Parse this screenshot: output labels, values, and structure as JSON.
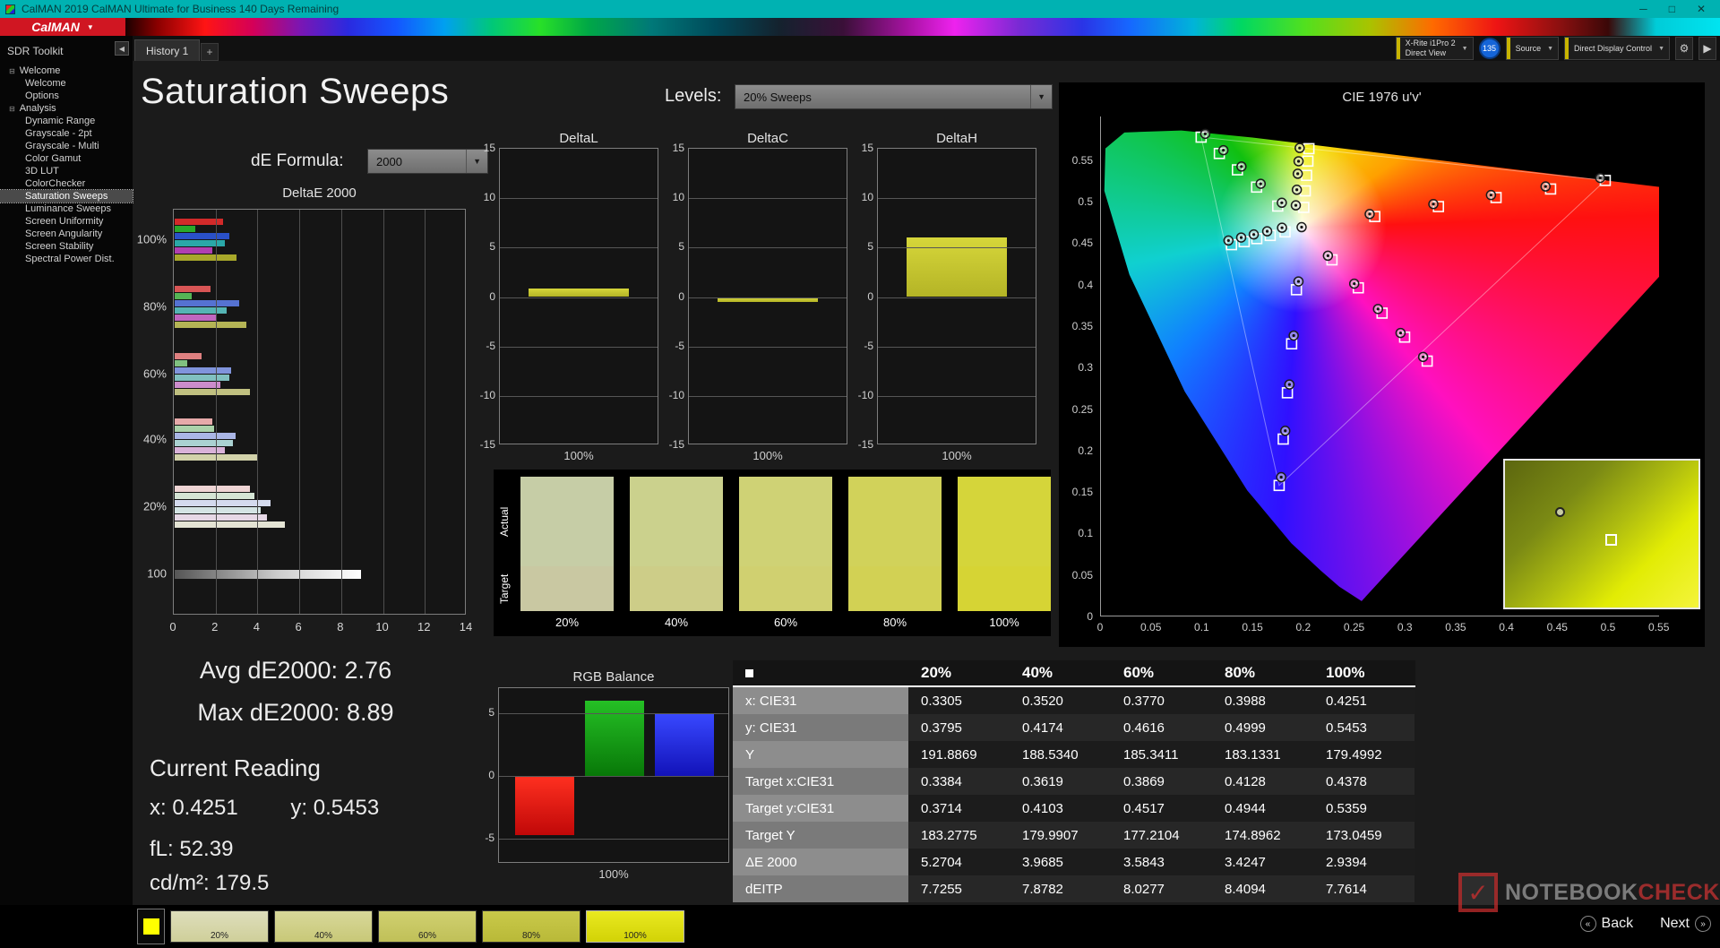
{
  "titlebar": {
    "title": "CalMAN 2019 CalMAN Ultimate for Business 140 Days Remaining",
    "minimize": "─",
    "maximize": "□",
    "close": "✕"
  },
  "brand": {
    "logo": "CalMAN",
    "arrow": "▼"
  },
  "tabs": {
    "history": "History 1",
    "add": "+",
    "collapse": "◀"
  },
  "ui": {
    "dropdown_arrow": "▼"
  },
  "topbar": {
    "meter_line1": "X-Rite i1Pro 2",
    "meter_line2": "Direct View",
    "badge": "135",
    "source": "Source",
    "display_control": "Direct Display Control",
    "gear": "⚙",
    "advance": "▶"
  },
  "sidebar": {
    "header": "SDR Toolkit",
    "groups": [
      {
        "label": "Welcome",
        "items": [
          "Welcome",
          "Options"
        ],
        "selected": ""
      },
      {
        "label": "Analysis",
        "items": [
          "Dynamic Range",
          "Grayscale - 2pt",
          "Grayscale - Multi",
          "Color Gamut",
          "3D LUT",
          "ColorChecker",
          "Saturation Sweeps",
          "Luminance Sweeps",
          "Screen Uniformity",
          "Screen Angularity",
          "Screen Stability",
          "Spectral Power Dist."
        ],
        "selected": "Saturation Sweeps"
      }
    ]
  },
  "page": {
    "title": "Saturation Sweeps",
    "levels_label": "Levels:",
    "levels_value": "20% Sweeps",
    "formula_label": "dE Formula:",
    "formula_value": "2000"
  },
  "chart_data": {
    "deltae": {
      "type": "bar",
      "title": "DeltaE 2000",
      "x_ticks": [
        0,
        2,
        4,
        6,
        8,
        10,
        12,
        14
      ],
      "x_max": 14,
      "groups": [
        {
          "label": "100%",
          "values": [
            2.3,
            1.0,
            2.6,
            2.4,
            1.8,
            2.94
          ],
          "colors": [
            "#d22a2a",
            "#2aa82a",
            "#2a50c8",
            "#2aa8a8",
            "#b040b0",
            "#a8a82a"
          ]
        },
        {
          "label": "80%",
          "values": [
            1.7,
            0.8,
            3.1,
            2.5,
            2.0,
            3.42
          ],
          "colors": [
            "#d85555",
            "#55b455",
            "#5572d2",
            "#55b4b4",
            "#c066c0",
            "#b4b455"
          ]
        },
        {
          "label": "60%",
          "values": [
            1.3,
            0.6,
            2.7,
            2.6,
            2.2,
            3.58
          ],
          "colors": [
            "#de8080",
            "#80c080",
            "#8094dc",
            "#80c0c0",
            "#cc8ccc",
            "#c0c080"
          ]
        },
        {
          "label": "40%",
          "values": [
            1.8,
            1.9,
            2.9,
            2.8,
            2.4,
            3.97
          ],
          "colors": [
            "#e6aaaa",
            "#aad2aa",
            "#aab6e6",
            "#aad2d2",
            "#d9b2d9",
            "#d2d2aa"
          ]
        },
        {
          "label": "20%",
          "values": [
            3.6,
            3.8,
            4.6,
            4.1,
            4.4,
            5.27
          ],
          "colors": [
            "#eed4d4",
            "#d4e4d4",
            "#d4daee",
            "#d4e4e4",
            "#e6d8e6",
            "#e4e4d4"
          ]
        },
        {
          "label": "100",
          "values": [
            8.89
          ],
          "colors": null
        }
      ]
    },
    "delta_axis": {
      "ticks": [
        15,
        10,
        5,
        0,
        -5,
        -10,
        -15
      ],
      "max": 15
    },
    "delta_charts": [
      {
        "title": "DeltaL",
        "value": 0.9,
        "x_label": "100%"
      },
      {
        "title": "DeltaC",
        "value": -0.5,
        "x_label": "100%"
      },
      {
        "title": "DeltaH",
        "value": 6.0,
        "x_label": "100%"
      }
    ],
    "rgb_balance": {
      "type": "bar",
      "title": "RGB Balance",
      "x_label": "100%",
      "ticks": [
        5,
        0,
        -5
      ],
      "max": 7,
      "bars": [
        {
          "name": "red",
          "value": -4.7,
          "color1": "#ff3020",
          "color2": "#c00808"
        },
        {
          "name": "green",
          "value": 6.0,
          "color1": "#25c025",
          "color2": "#087808"
        },
        {
          "name": "blue",
          "value": 4.9,
          "color1": "#3848ff",
          "color2": "#1212b8"
        }
      ]
    },
    "cie": {
      "type": "scatter",
      "title": "CIE 1976 u'v'",
      "x_tick_labels": [
        "0",
        "0.05",
        "0.1",
        "0.15",
        "0.2",
        "0.25",
        "0.3",
        "0.35",
        "0.4",
        "0.45",
        "0.5",
        "0.55"
      ],
      "y_tick_labels": [
        "0.55",
        "0.5",
        "0.45",
        "0.4",
        "0.35",
        "0.3",
        "0.25",
        "0.2",
        "0.15",
        "0.1",
        "0.05",
        "0"
      ],
      "triangle": [
        [
          0.4964,
          0.5255
        ],
        [
          0.0986,
          0.5777
        ],
        [
          0.1754,
          0.1579
        ]
      ],
      "targets": [
        [
          0.2695,
          0.482
        ],
        [
          0.3322,
          0.494
        ],
        [
          0.3889,
          0.5049
        ],
        [
          0.4426,
          0.5152
        ],
        [
          0.4964,
          0.5255
        ],
        [
          0.174,
          0.4946
        ],
        [
          0.1532,
          0.5175
        ],
        [
          0.1343,
          0.5383
        ],
        [
          0.1165,
          0.558
        ],
        [
          0.0986,
          0.5777
        ],
        [
          0.1924,
          0.3938
        ],
        [
          0.1877,
          0.3286
        ],
        [
          0.1835,
          0.2696
        ],
        [
          0.1794,
          0.2138
        ],
        [
          0.1754,
          0.1579
        ],
        [
          0.1812,
          0.4635
        ],
        [
          0.1666,
          0.4592
        ],
        [
          0.1534,
          0.4554
        ],
        [
          0.141,
          0.4517
        ],
        [
          0.1285,
          0.4481
        ],
        [
          0.2274,
          0.4298
        ],
        [
          0.2533,
          0.3961
        ],
        [
          0.2767,
          0.3656
        ],
        [
          0.2989,
          0.3367
        ],
        [
          0.3211,
          0.3078
        ],
        [
          0.1996,
          0.493
        ],
        [
          0.2011,
          0.5129
        ],
        [
          0.2024,
          0.5316
        ],
        [
          0.2037,
          0.5488
        ],
        [
          0.2047,
          0.5638
        ]
      ],
      "measured": [
        [
          0.2645,
          0.485
        ],
        [
          0.3272,
          0.497
        ],
        [
          0.3839,
          0.5079
        ],
        [
          0.4376,
          0.5182
        ],
        [
          0.4914,
          0.5285
        ],
        [
          0.178,
          0.4986
        ],
        [
          0.1572,
          0.5215
        ],
        [
          0.1383,
          0.5423
        ],
        [
          0.1205,
          0.562
        ],
        [
          0.1026,
          0.5817
        ],
        [
          0.1944,
          0.4038
        ],
        [
          0.1897,
          0.3386
        ],
        [
          0.1855,
          0.2796
        ],
        [
          0.1814,
          0.2238
        ],
        [
          0.1774,
          0.1679
        ],
        [
          0.1782,
          0.4685
        ],
        [
          0.1636,
          0.4642
        ],
        [
          0.1504,
          0.4604
        ],
        [
          0.138,
          0.4567
        ],
        [
          0.1255,
          0.4531
        ],
        [
          0.2234,
          0.4348
        ],
        [
          0.2493,
          0.4011
        ],
        [
          0.2727,
          0.3706
        ],
        [
          0.2949,
          0.3417
        ],
        [
          0.3171,
          0.3128
        ],
        [
          0.1918,
          0.4955
        ],
        [
          0.1928,
          0.5143
        ],
        [
          0.1937,
          0.5336
        ],
        [
          0.1945,
          0.5486
        ],
        [
          0.1956,
          0.5646
        ],
        [
          0.1975,
          0.4692
        ]
      ],
      "inset": {
        "circle": [
          26,
          32
        ],
        "square": [
          52,
          50
        ]
      }
    }
  },
  "swatches": {
    "actual_label": "Actual",
    "target_label": "Target",
    "levels": [
      "20%",
      "40%",
      "60%",
      "80%",
      "100%"
    ],
    "actual": [
      "#c6cda6",
      "#cbd18d",
      "#cfd275",
      "#d1d25a",
      "#d5d53a"
    ],
    "target": [
      "#c9c8a2",
      "#cdcd88",
      "#d0d070",
      "#d2d154",
      "#d6d434"
    ]
  },
  "stats": {
    "avg": "Avg dE2000: 2.76",
    "max": "Max dE2000: 8.89",
    "current_label": "Current Reading",
    "x_value": "x: 0.4251",
    "y_value": "y: 0.5453",
    "fl": "fL: 52.39",
    "cd": "cd/m²: 179.5"
  },
  "table": {
    "columns": [
      "20%",
      "40%",
      "60%",
      "80%",
      "100%"
    ],
    "rows": [
      {
        "label": "x: CIE31",
        "values": [
          "0.3305",
          "0.3520",
          "0.3770",
          "0.3988",
          "0.4251"
        ]
      },
      {
        "label": "y: CIE31",
        "values": [
          "0.3795",
          "0.4174",
          "0.4616",
          "0.4999",
          "0.5453"
        ]
      },
      {
        "label": "Y",
        "values": [
          "191.8869",
          "188.5340",
          "185.3411",
          "183.1331",
          "179.4992"
        ]
      },
      {
        "label": "Target x:CIE31",
        "values": [
          "0.3384",
          "0.3619",
          "0.3869",
          "0.4128",
          "0.4378"
        ]
      },
      {
        "label": "Target y:CIE31",
        "values": [
          "0.3714",
          "0.4103",
          "0.4517",
          "0.4944",
          "0.5359"
        ]
      },
      {
        "label": "Target Y",
        "values": [
          "183.2775",
          "179.9907",
          "177.2104",
          "174.8962",
          "173.0459"
        ]
      },
      {
        "label": "ΔE 2000",
        "values": [
          "5.2704",
          "3.9685",
          "3.5843",
          "3.4247",
          "2.9394"
        ]
      },
      {
        "label": "dEITP",
        "values": [
          "7.7255",
          "7.8782",
          "8.0277",
          "8.4094",
          "7.7614"
        ]
      }
    ]
  },
  "filmstrip": {
    "preview_color": "#ffff00",
    "items": [
      {
        "label": "20%",
        "top": "#dedebc",
        "bottom": "#cfcf9a",
        "selected": false
      },
      {
        "label": "40%",
        "top": "#d8d89a",
        "bottom": "#c8c878",
        "selected": false
      },
      {
        "label": "60%",
        "top": "#d0d070",
        "bottom": "#c0c058",
        "selected": false
      },
      {
        "label": "80%",
        "top": "#c9c94a",
        "bottom": "#b9b938",
        "selected": false
      },
      {
        "label": "100%",
        "top": "#e9e920",
        "bottom": "#d2d206",
        "selected": true
      }
    ]
  },
  "nav": {
    "back": "Back",
    "next": "Next",
    "back_icon": "«",
    "next_icon": "»"
  },
  "watermark": {
    "check": "✓",
    "part1": "NOTEBOOK",
    "part2": "CHECK"
  }
}
